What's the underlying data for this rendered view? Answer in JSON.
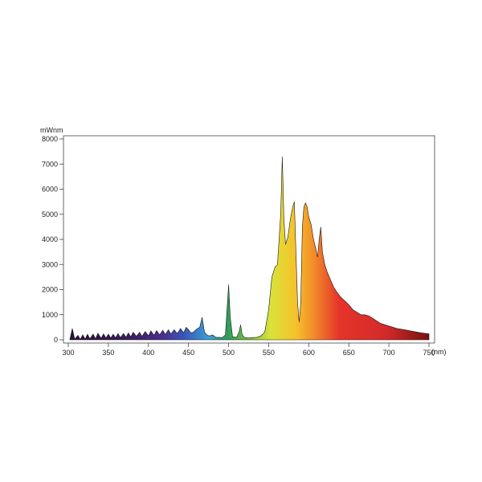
{
  "chart_data": {
    "type": "area",
    "title": "",
    "xlabel": "(nm)",
    "ylabel": "mWnm",
    "xlim": [
      300,
      750
    ],
    "ylim": [
      0,
      8000
    ],
    "grid": false,
    "x_ticks": [
      300,
      350,
      400,
      450,
      500,
      550,
      600,
      650,
      700,
      750
    ],
    "x_tick_labels": [
      "300",
      "350",
      "400",
      "450",
      "500",
      "550",
      "600",
      "650",
      "700",
      "750"
    ],
    "y_ticks": [
      0,
      1000,
      2000,
      3000,
      4000,
      5000,
      6000,
      7000,
      8000
    ],
    "y_tick_labels": [
      "0",
      "1000",
      "2000",
      "3000",
      "4000",
      "5000",
      "6000",
      "7000",
      "8000"
    ],
    "fill": "visible-spectrum color gradient",
    "series": [
      {
        "x": [
          302,
          305,
          308,
          312,
          315,
          318,
          321,
          324,
          327,
          331,
          334,
          337,
          341,
          344,
          347,
          350,
          353,
          356,
          359,
          362,
          365,
          369,
          372,
          375,
          378,
          381,
          385,
          389,
          392,
          396,
          400,
          403,
          407,
          410,
          414,
          418,
          421,
          425,
          428,
          432,
          436,
          440,
          444,
          447,
          450,
          453,
          456,
          460,
          464,
          467,
          470,
          473,
          476,
          480,
          484,
          488,
          492,
          496,
          498,
          500,
          502,
          505,
          510,
          513,
          515,
          517,
          520,
          525,
          530,
          535,
          540,
          545,
          550,
          554,
          558,
          561,
          563,
          565,
          567,
          569,
          571,
          574,
          577,
          580,
          582,
          584,
          586,
          588,
          590,
          592,
          594,
          596,
          598,
          600,
          603,
          606,
          609,
          611,
          613,
          615,
          617,
          620,
          623,
          627,
          631,
          635,
          640,
          645,
          650,
          655,
          660,
          665,
          670,
          675,
          680,
          685,
          690,
          700,
          710,
          720,
          730,
          740,
          750
        ],
        "values": [
          20,
          450,
          30,
          180,
          20,
          200,
          30,
          220,
          40,
          230,
          40,
          260,
          60,
          240,
          70,
          230,
          70,
          220,
          80,
          250,
          90,
          250,
          100,
          280,
          120,
          300,
          140,
          300,
          140,
          330,
          160,
          360,
          180,
          370,
          200,
          380,
          210,
          400,
          230,
          400,
          250,
          450,
          280,
          500,
          400,
          280,
          300,
          420,
          500,
          900,
          300,
          200,
          150,
          200,
          100,
          100,
          90,
          200,
          1200,
          2200,
          900,
          120,
          100,
          300,
          600,
          200,
          90,
          80,
          90,
          100,
          150,
          300,
          1200,
          2500,
          2900,
          3000,
          4000,
          5000,
          7300,
          4800,
          3800,
          4100,
          4800,
          5300,
          5500,
          3500,
          1500,
          700,
          1500,
          4500,
          5300,
          5450,
          5300,
          4900,
          4600,
          4000,
          3600,
          3300,
          4000,
          4500,
          3500,
          3000,
          2700,
          2400,
          2100,
          1900,
          1700,
          1550,
          1400,
          1200,
          1100,
          1000,
          1000,
          950,
          850,
          750,
          650,
          550,
          450,
          400,
          340,
          280,
          240
        ]
      }
    ]
  }
}
